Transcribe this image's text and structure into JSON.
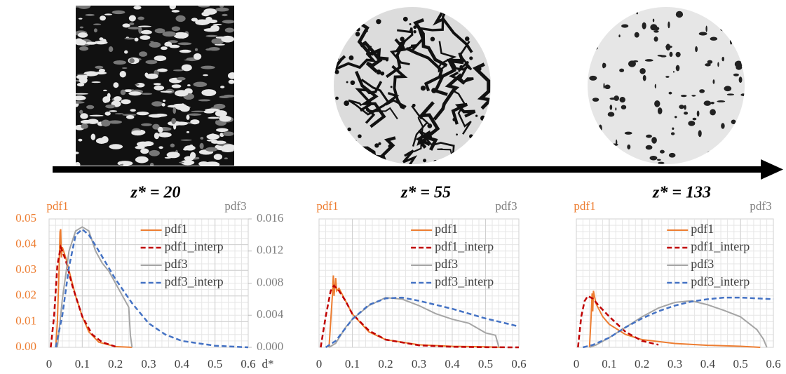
{
  "chart_data": [
    {
      "type": "line",
      "title": "z* = 20",
      "ylabel": "pdf1",
      "y2label": "pdf3",
      "xlabel": "d*",
      "xlim": [
        0,
        0.6
      ],
      "xticks": [
        0,
        0.1,
        0.2,
        0.3,
        0.4,
        0.5,
        0.6
      ],
      "ylim": [
        0,
        0.05
      ],
      "yticks": [
        {
          "value": 0,
          "label": "0.00"
        },
        0.01,
        0.02,
        0.03,
        0.04,
        0.05
      ],
      "y2lim": [
        0,
        0.016
      ],
      "y2ticks": [
        {
          "value": 0,
          "label": "0.000"
        },
        0.004,
        0.008,
        0.012,
        0.016
      ],
      "grid": true,
      "legend": "upper right",
      "series": [
        {
          "name": "pdf1",
          "color": "#ed7d31",
          "dash": false,
          "x": [
            0.02,
            0.025,
            0.03,
            0.033,
            0.035,
            0.037,
            0.04,
            0.05,
            0.06,
            0.08,
            0.1,
            0.12,
            0.15,
            0.2,
            0.25
          ],
          "values": [
            0,
            0.01,
            0.03,
            0.045,
            0.046,
            0.035,
            0.039,
            0.035,
            0.03,
            0.02,
            0.012,
            0.006,
            0.002,
            0.0003,
            0
          ]
        },
        {
          "name": "pdf1_interp",
          "color": "#c00000",
          "dash": true,
          "x": [
            0.005,
            0.015,
            0.025,
            0.035,
            0.05,
            0.07,
            0.1,
            0.13,
            0.16,
            0.2
          ],
          "values": [
            0,
            0.012,
            0.032,
            0.039,
            0.034,
            0.024,
            0.012,
            0.005,
            0.002,
            0.0003
          ]
        },
        {
          "name": "pdf3",
          "color": "#a5a5a5",
          "dash": false,
          "axis": "y2",
          "x": [
            0.025,
            0.04,
            0.06,
            0.08,
            0.1,
            0.12,
            0.14,
            0.16,
            0.18,
            0.2,
            0.22,
            0.24,
            0.245,
            0.25
          ],
          "values": [
            0,
            0.006,
            0.012,
            0.0145,
            0.015,
            0.0145,
            0.012,
            0.0105,
            0.0095,
            0.008,
            0.0065,
            0.005,
            0.0015,
            0
          ]
        },
        {
          "name": "pdf3_interp",
          "color": "#4472c4",
          "dash": true,
          "axis": "y2",
          "x": [
            0.02,
            0.04,
            0.06,
            0.08,
            0.1,
            0.12,
            0.15,
            0.2,
            0.25,
            0.3,
            0.35,
            0.4,
            0.5,
            0.6
          ],
          "values": [
            0,
            0.004,
            0.01,
            0.014,
            0.0147,
            0.014,
            0.012,
            0.0085,
            0.0055,
            0.003,
            0.0016,
            0.0008,
            0.0002,
            0
          ]
        }
      ]
    },
    {
      "type": "line",
      "title": "z* = 55",
      "ylabel": "pdf1",
      "y2label": "pdf3",
      "xlim": [
        0,
        0.6
      ],
      "xticks": [
        0,
        0.1,
        0.2,
        0.3,
        0.4,
        0.5,
        0.6
      ],
      "ylim": [
        0,
        0.05
      ],
      "y2lim": [
        0,
        0.016
      ],
      "grid": true,
      "legend": "upper right",
      "series": [
        {
          "name": "pdf1",
          "color": "#ed7d31",
          "dash": false,
          "x": [
            0.03,
            0.04,
            0.043,
            0.045,
            0.05,
            0.053,
            0.06,
            0.08,
            0.1,
            0.15,
            0.2,
            0.3,
            0.4,
            0.5,
            0.55
          ],
          "values": [
            0,
            0.02,
            0.028,
            0.02,
            0.027,
            0.022,
            0.023,
            0.018,
            0.013,
            0.006,
            0.003,
            0.001,
            0.0004,
            0.0002,
            0
          ]
        },
        {
          "name": "pdf1_interp",
          "color": "#c00000",
          "dash": true,
          "x": [
            0.005,
            0.02,
            0.035,
            0.045,
            0.06,
            0.08,
            0.1,
            0.15,
            0.2,
            0.3,
            0.4,
            0.5,
            0.6
          ],
          "values": [
            0,
            0.012,
            0.022,
            0.024,
            0.022,
            0.018,
            0.013,
            0.0065,
            0.003,
            0.0008,
            0.0002,
            5e-05,
            0
          ]
        },
        {
          "name": "pdf3",
          "color": "#a5a5a5",
          "dash": false,
          "axis": "y2",
          "x": [
            0.03,
            0.05,
            0.08,
            0.1,
            0.15,
            0.2,
            0.25,
            0.3,
            0.35,
            0.4,
            0.45,
            0.5,
            0.53,
            0.54
          ],
          "values": [
            0,
            0.0005,
            0.0025,
            0.0035,
            0.0052,
            0.0062,
            0.006,
            0.0052,
            0.0042,
            0.0035,
            0.003,
            0.0018,
            0.0015,
            0
          ]
        },
        {
          "name": "pdf3_interp",
          "color": "#4472c4",
          "dash": true,
          "axis": "y2",
          "x": [
            0.02,
            0.05,
            0.1,
            0.15,
            0.2,
            0.25,
            0.3,
            0.4,
            0.5,
            0.6
          ],
          "values": [
            0,
            0.0008,
            0.0035,
            0.0053,
            0.0061,
            0.0062,
            0.0058,
            0.0048,
            0.0036,
            0.0026
          ]
        }
      ]
    },
    {
      "type": "line",
      "title": "z* = 133",
      "ylabel": "pdf1",
      "y2label": "pdf3",
      "xlim": [
        0,
        0.6
      ],
      "xticks": [
        0,
        0.1,
        0.2,
        0.3,
        0.4,
        0.5,
        0.6
      ],
      "ylim": [
        0,
        0.05
      ],
      "y2lim": [
        0,
        0.016
      ],
      "grid": true,
      "legend": "upper right",
      "series": [
        {
          "name": "pdf1",
          "color": "#ed7d31",
          "dash": false,
          "x": [
            0.04,
            0.045,
            0.048,
            0.05,
            0.052,
            0.055,
            0.06,
            0.08,
            0.1,
            0.15,
            0.2,
            0.3,
            0.4,
            0.5,
            0.56
          ],
          "values": [
            0,
            0.012,
            0.021,
            0.014,
            0.022,
            0.02,
            0.017,
            0.012,
            0.009,
            0.005,
            0.003,
            0.0015,
            0.0008,
            0.0004,
            0
          ]
        },
        {
          "name": "pdf1_interp",
          "color": "#c00000",
          "dash": true,
          "x": [
            0.005,
            0.015,
            0.025,
            0.035,
            0.05,
            0.07,
            0.1,
            0.15,
            0.2,
            0.25
          ],
          "values": [
            0,
            0.012,
            0.018,
            0.02,
            0.019,
            0.016,
            0.012,
            0.006,
            0.0025,
            0.001
          ]
        },
        {
          "name": "pdf3",
          "color": "#a5a5a5",
          "dash": false,
          "axis": "y2",
          "x": [
            0.04,
            0.06,
            0.1,
            0.15,
            0.2,
            0.25,
            0.3,
            0.35,
            0.4,
            0.45,
            0.5,
            0.55,
            0.57,
            0.58
          ],
          "values": [
            0,
            0.0003,
            0.0012,
            0.0025,
            0.0038,
            0.0049,
            0.0056,
            0.0058,
            0.0053,
            0.0046,
            0.0038,
            0.0022,
            0.001,
            0
          ]
        },
        {
          "name": "pdf3_interp",
          "color": "#4472c4",
          "dash": true,
          "axis": "y2",
          "x": [
            0.02,
            0.05,
            0.1,
            0.15,
            0.2,
            0.25,
            0.3,
            0.35,
            0.4,
            0.45,
            0.5,
            0.55,
            0.6
          ],
          "values": [
            0,
            0.0003,
            0.0012,
            0.0025,
            0.0036,
            0.0045,
            0.0052,
            0.0057,
            0.006,
            0.0062,
            0.0062,
            0.0061,
            0.006
          ]
        }
      ]
    }
  ]
}
